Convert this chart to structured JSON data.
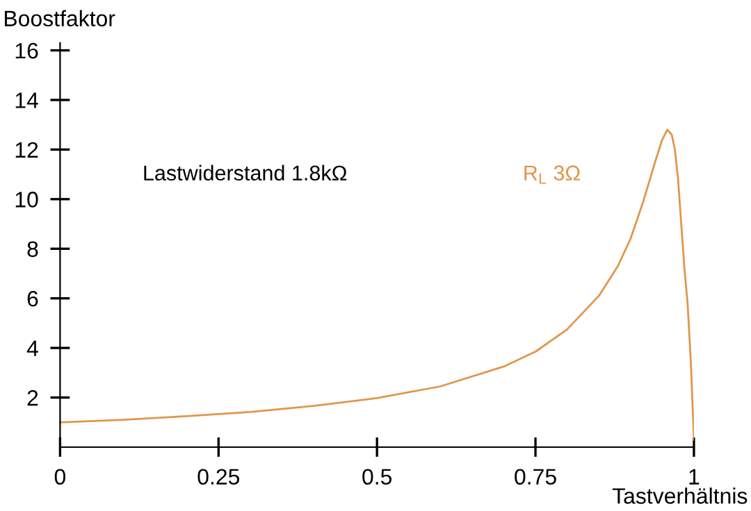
{
  "chart_data": {
    "type": "line",
    "xlabel": "Tastverhältnis",
    "ylabel": "Boostfaktor",
    "x": [
      0,
      0.1,
      0.2,
      0.3,
      0.4,
      0.5,
      0.6,
      0.7,
      0.75,
      0.8,
      0.85,
      0.88,
      0.9,
      0.92,
      0.94,
      0.95,
      0.958,
      0.965,
      0.97,
      0.975,
      0.98,
      0.985,
      0.99,
      0.995,
      1.0
    ],
    "series": [
      {
        "name": "R$_{L}$ 3Ω",
        "color": "#e0964a",
        "values": [
          1.0,
          1.1,
          1.25,
          1.42,
          1.66,
          1.98,
          2.45,
          3.25,
          3.85,
          4.75,
          6.1,
          7.3,
          8.4,
          9.9,
          11.6,
          12.4,
          12.8,
          12.6,
          12.0,
          10.8,
          9.0,
          7.2,
          5.8,
          3.5,
          0.3
        ]
      }
    ],
    "annotations": [
      "Lastwiderstand 1.8kΩ"
    ],
    "xlim": [
      0,
      1
    ],
    "xticks": [
      0,
      0.25,
      0.5,
      0.75,
      1
    ],
    "ylim": [
      0,
      16.3
    ],
    "yticks": [
      2,
      4,
      6,
      8,
      10,
      12,
      14,
      16
    ],
    "grid": false,
    "legend": false,
    "marker": "none",
    "line_style": "solid"
  }
}
